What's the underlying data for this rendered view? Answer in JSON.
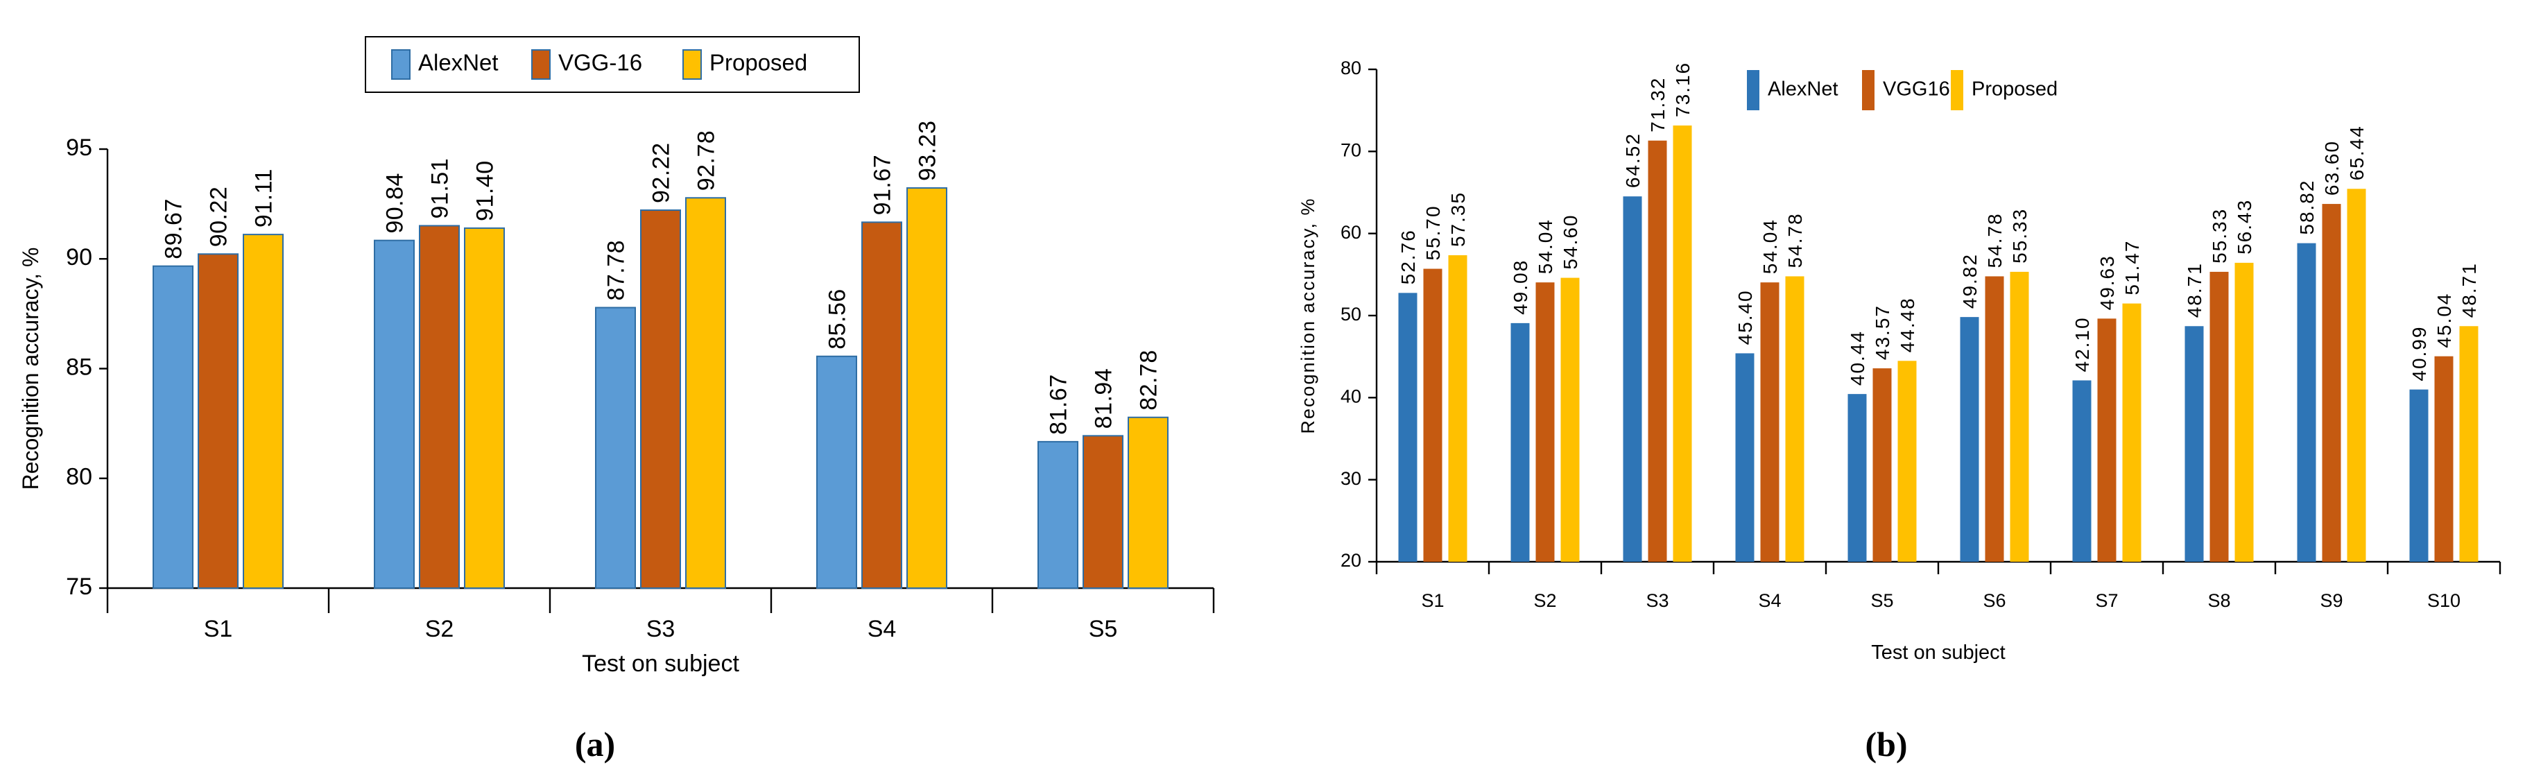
{
  "chart_data": [
    {
      "type": "bar",
      "caption": "(a)",
      "categories": [
        "S1",
        "S2",
        "S3",
        "S4",
        "S5"
      ],
      "series": [
        {
          "name": "AlexNet",
          "values": [
            89.67,
            90.84,
            87.78,
            85.56,
            81.67
          ],
          "color": "#5B9BD5",
          "label_text": [
            "89.67",
            "90.84",
            "87.78",
            "85.56",
            "81.67"
          ]
        },
        {
          "name": "VGG-16",
          "values": [
            90.22,
            91.51,
            92.22,
            91.67,
            81.94
          ],
          "color": "#C55A11",
          "label_text": [
            "90.22",
            "91.51",
            "92.22",
            "91.67",
            "81.94"
          ]
        },
        {
          "name": "Proposed",
          "values": [
            91.11,
            91.4,
            92.78,
            93.23,
            82.78
          ],
          "color": "#FFC000",
          "label_text": [
            "91.11",
            "91.40",
            "92.78",
            "93.23",
            "82.78"
          ]
        }
      ],
      "xlabel": "Test on subject",
      "ylabel": "Recognition accuracy, %",
      "ylim": [
        75,
        95
      ],
      "yticks": [
        "75",
        "80",
        "85",
        "90",
        "95"
      ],
      "legend": "top-center",
      "bar_border": true
    },
    {
      "type": "bar",
      "caption": "(b)",
      "categories": [
        "S1",
        "S2",
        "S3",
        "S4",
        "S5",
        "S6",
        "S7",
        "S8",
        "S9",
        "S10"
      ],
      "series": [
        {
          "name": "AlexNet",
          "values": [
            52.76,
            49.08,
            64.52,
            45.4,
            40.44,
            49.82,
            42.1,
            48.71,
            58.82,
            40.99
          ],
          "color": "#2E75B6",
          "label_text": [
            "52.76",
            "49.08",
            "64.52",
            "45.40",
            "40.44",
            "49.82",
            "42.10",
            "48.71",
            "58.82",
            "40.99"
          ]
        },
        {
          "name": "VGG16",
          "values": [
            55.7,
            54.04,
            71.32,
            54.04,
            43.57,
            54.78,
            49.63,
            55.33,
            63.6,
            45.04
          ],
          "color": "#C55A11",
          "label_text": [
            "55.70",
            "54.04",
            "71.32",
            "54.04",
            "43.57",
            "54.78",
            "49.63",
            "55.33",
            "63.60",
            "45.04"
          ]
        },
        {
          "name": "Proposed",
          "values": [
            57.35,
            54.6,
            73.16,
            54.78,
            44.48,
            55.33,
            51.47,
            56.43,
            65.44,
            48.71
          ],
          "color": "#FFC000",
          "label_text": [
            "57.35",
            "54.60",
            "73.16",
            "54.78",
            "44.48",
            "55.33",
            "51.47",
            "56.43",
            "65.44",
            "48.71"
          ]
        }
      ],
      "xlabel": "Test on subject",
      "ylabel": "Recognition accuracy, %",
      "ylim": [
        20,
        80
      ],
      "yticks": [
        "20",
        "30",
        "40",
        "50",
        "60",
        "70",
        "80"
      ],
      "legend": "top-left",
      "bar_border": false
    }
  ]
}
